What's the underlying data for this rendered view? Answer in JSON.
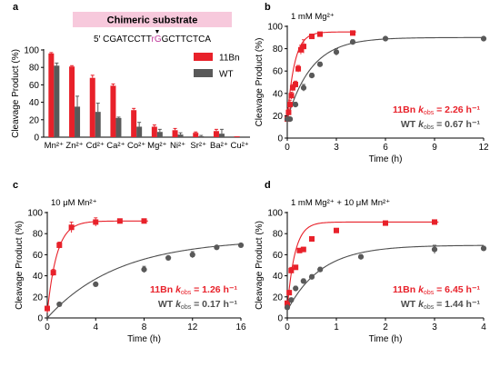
{
  "colors": {
    "red": "#e8212a",
    "gray": "#595959",
    "fit_gray": "#4d4d4d",
    "pink": "#f7c9dc",
    "magenta": "#c0399b",
    "axis": "#000000"
  },
  "chart_data": [
    {
      "id": "a",
      "type": "bar",
      "panel_label": "a",
      "header": {
        "title": "Chimeric substrate",
        "seq_prefix": "5′ CGATCCTT",
        "seq_mid": "rG",
        "seq_suffix": "GCTTCTCA",
        "cleavage_mark": "▼"
      },
      "ylabel": "Cleavage Product (%)",
      "ylim": [
        0,
        100
      ],
      "yticks": [
        0,
        20,
        40,
        60,
        80,
        100
      ],
      "categories": [
        "Mn²⁺",
        "Zn²⁺",
        "Cd²⁺",
        "Ca²⁺",
        "Co²⁺",
        "Mg²⁺",
        "Ni²⁺",
        "Sr²⁺",
        "Ba²⁺",
        "Cu²⁺"
      ],
      "legend_position": "top-right",
      "series": [
        {
          "name": "11Bn",
          "color": "#e8212a",
          "values": [
            96,
            81,
            68,
            59,
            31,
            12,
            8,
            5,
            7,
            1
          ],
          "errors": [
            1,
            1,
            3,
            2,
            2,
            2,
            2,
            1,
            2,
            0
          ]
        },
        {
          "name": "WT",
          "color": "#595959",
          "values": [
            82,
            35,
            29,
            22,
            12,
            6,
            3,
            1,
            4,
            0
          ],
          "errors": [
            3,
            12,
            10,
            1,
            5,
            3,
            2,
            1,
            5,
            0
          ]
        }
      ]
    },
    {
      "id": "b",
      "type": "scatter",
      "panel_label": "b",
      "condition": "1 mM Mg²⁺",
      "xlabel": "Time (h)",
      "ylabel": "Cleavage Product (%)",
      "xlim": [
        0,
        12
      ],
      "ylim": [
        0,
        100
      ],
      "xticks": [
        0,
        3,
        6,
        9,
        12
      ],
      "yticks": [
        0,
        20,
        40,
        60,
        80,
        100
      ],
      "rates": [
        {
          "series": "11Bn",
          "label": "11Bn",
          "k_text": "= 2.26 h⁻¹",
          "color": "#e8212a"
        },
        {
          "series": "WT",
          "label": "WT",
          "k_text": "= 0.67 h⁻¹",
          "color": "#4d4d4d"
        }
      ],
      "series": [
        {
          "name": "11Bn",
          "marker": "square",
          "color": "#e8212a",
          "fit": {
            "y0": 17,
            "ymax": 95,
            "k": 2.26
          },
          "x": [
            0,
            0.08,
            0.17,
            0.25,
            0.33,
            0.5,
            0.67,
            0.83,
            1,
            1.5,
            2,
            4
          ],
          "y": [
            17,
            23,
            30,
            38,
            45,
            48,
            62,
            79,
            82,
            91,
            93,
            94
          ],
          "err": [
            2,
            3,
            4,
            3,
            3,
            3,
            3,
            4,
            6,
            2,
            1,
            1
          ]
        },
        {
          "name": "WT",
          "marker": "circle",
          "color": "#595959",
          "fit": {
            "y0": 17,
            "ymax": 90,
            "k": 0.67
          },
          "x": [
            0,
            0.17,
            0.5,
            1,
            1.5,
            2,
            3,
            4,
            6,
            12
          ],
          "y": [
            17,
            17,
            30,
            45,
            56,
            66,
            77,
            86,
            89,
            89
          ],
          "err": [
            1,
            1,
            2,
            3,
            2,
            2,
            3,
            2,
            1,
            1
          ]
        }
      ]
    },
    {
      "id": "c",
      "type": "scatter",
      "panel_label": "c",
      "condition": "10 μM Mn²⁺",
      "xlabel": "Time (h)",
      "ylabel": "Cleavage Product (%)",
      "xlim": [
        0,
        16
      ],
      "ylim": [
        0,
        100
      ],
      "xticks": [
        0,
        4,
        8,
        12,
        16
      ],
      "yticks": [
        0,
        20,
        40,
        60,
        80,
        100
      ],
      "rates": [
        {
          "series": "11Bn",
          "label": "11Bn",
          "k_text": "= 1.26 h⁻¹",
          "color": "#e8212a"
        },
        {
          "series": "WT",
          "label": "WT",
          "k_text": "= 0.17 h⁻¹",
          "color": "#4d4d4d"
        }
      ],
      "series": [
        {
          "name": "11Bn",
          "marker": "square",
          "color": "#e8212a",
          "fit": {
            "y0": 5,
            "ymax": 92,
            "k": 1.26
          },
          "x": [
            0,
            0.5,
            1,
            2,
            4,
            6,
            8
          ],
          "y": [
            9,
            43,
            69,
            86,
            91,
            92,
            92
          ],
          "err": [
            2,
            3,
            3,
            5,
            4,
            1,
            1
          ]
        },
        {
          "name": "WT",
          "marker": "circle",
          "color": "#595959",
          "fit": {
            "y0": 0,
            "ymax": 75,
            "k": 0.17
          },
          "x": [
            1,
            4,
            8,
            10,
            12,
            14,
            16
          ],
          "y": [
            13,
            32,
            46,
            57,
            60,
            67,
            69
          ],
          "err": [
            1,
            1,
            3,
            1,
            3,
            1,
            1
          ]
        }
      ]
    },
    {
      "id": "d",
      "type": "scatter",
      "panel_label": "d",
      "condition": "1 mM Mg²⁺ + 10 μM Mn²⁺",
      "xlabel": "Time (h)",
      "ylabel": "Cleavage Product (%)",
      "xlim": [
        0,
        4
      ],
      "ylim": [
        0,
        100
      ],
      "xticks": [
        0,
        1,
        2,
        3,
        4
      ],
      "yticks": [
        0,
        20,
        40,
        60,
        80,
        100
      ],
      "rates": [
        {
          "series": "11Bn",
          "label": "11Bn",
          "k_text": "= 6.45 h⁻¹",
          "color": "#e8212a"
        },
        {
          "series": "WT",
          "label": "WT",
          "k_text": "= 1.44 h⁻¹",
          "color": "#4d4d4d"
        }
      ],
      "series": [
        {
          "name": "11Bn",
          "marker": "square",
          "color": "#e8212a",
          "fit": {
            "y0": 9,
            "ymax": 91,
            "k": 6.45
          },
          "x": [
            0,
            0.04,
            0.08,
            0.17,
            0.25,
            0.33,
            0.5,
            1,
            2,
            3
          ],
          "y": [
            14,
            24,
            45,
            48,
            64,
            65,
            75,
            83,
            90,
            91
          ],
          "err": [
            2,
            2,
            3,
            2,
            2,
            2,
            2,
            1,
            1,
            1
          ]
        },
        {
          "name": "WT",
          "marker": "circle",
          "color": "#595959",
          "fit": {
            "y0": 7,
            "ymax": 69,
            "k": 1.44
          },
          "x": [
            0,
            0.08,
            0.17,
            0.33,
            0.5,
            0.67,
            1.5,
            3,
            4
          ],
          "y": [
            10,
            17,
            28,
            35,
            39,
            46,
            58,
            65,
            66
          ],
          "err": [
            2,
            2,
            2,
            2,
            2,
            2,
            2,
            4,
            2
          ]
        }
      ]
    }
  ]
}
